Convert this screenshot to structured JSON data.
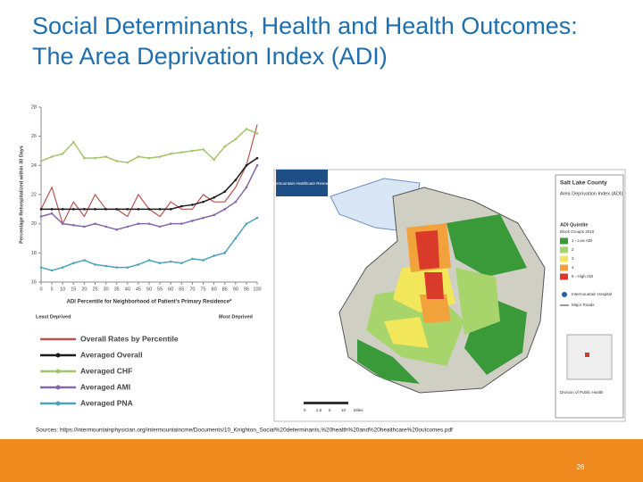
{
  "title": "Social Determinants, Health and Health Outcomes: The Area Deprivation Index (ADI)",
  "chart": {
    "type": "line",
    "y_axis_label": "Percentage Rehospitalized within 30 Days",
    "x_axis_label": "ADI Percentile for Neighborhood of Patient's Primary Residence*",
    "left_note": "Least Deprived",
    "right_note": "Most Deprived",
    "x": [
      0,
      5,
      10,
      15,
      20,
      25,
      30,
      35,
      40,
      45,
      50,
      55,
      60,
      65,
      70,
      75,
      80,
      85,
      90,
      95,
      100
    ],
    "xlim": [
      0,
      100
    ],
    "xticks": [
      0,
      5,
      10,
      15,
      20,
      25,
      30,
      35,
      40,
      45,
      50,
      55,
      60,
      65,
      70,
      75,
      80,
      85,
      90,
      95,
      100
    ],
    "ylim": [
      16,
      28
    ],
    "yticks": [
      16,
      18,
      20,
      22,
      24,
      26,
      28
    ],
    "series": [
      {
        "name": "Overall Rates by Percentile",
        "color": "#b5534f",
        "values": [
          21,
          22.5,
          20,
          21.5,
          20.5,
          22,
          21,
          21,
          20.5,
          22,
          21,
          20.5,
          21.5,
          21,
          21,
          22,
          21.5,
          21.5,
          22.5,
          24,
          26.8
        ]
      },
      {
        "name": "Averaged Overall",
        "color": "#1a1a1a",
        "values": [
          21,
          21,
          21,
          21,
          21,
          21,
          21,
          21,
          21,
          21,
          21,
          21,
          21,
          21.2,
          21.3,
          21.5,
          21.8,
          22.2,
          23,
          24,
          24.5
        ]
      },
      {
        "name": "Averaged CHF",
        "color": "#a3c46c",
        "values": [
          24.3,
          24.6,
          24.8,
          25.6,
          24.5,
          24.5,
          24.6,
          24.3,
          24.2,
          24.6,
          24.5,
          24.6,
          24.8,
          24.9,
          25,
          25.1,
          24.4,
          25.3,
          25.8,
          26.5,
          26.2
        ]
      },
      {
        "name": "Averaged AMI",
        "color": "#8468a8",
        "values": [
          20.5,
          20.7,
          20,
          19.9,
          19.8,
          20,
          19.8,
          19.6,
          19.8,
          20,
          20,
          19.8,
          20,
          20,
          20.2,
          20.4,
          20.6,
          21,
          21.5,
          22.5,
          24
        ]
      },
      {
        "name": "Averaged PNA",
        "color": "#4aa3b8",
        "values": [
          17,
          16.8,
          17,
          17.3,
          17.5,
          17.2,
          17.1,
          17,
          17,
          17.2,
          17.5,
          17.3,
          17.4,
          17.3,
          17.6,
          17.5,
          17.8,
          18,
          19,
          20,
          20.4
        ]
      }
    ]
  },
  "map": {
    "logo_text": "Intermountain Healthcare Research",
    "county": "Salt Lake County",
    "map_title": "Area Deprivation Index (ADI)",
    "legend_title": "ADI Quintile",
    "legend_subtitle": "Block Groups 2010",
    "quintiles": [
      {
        "label": "1 - Low ADI",
        "color": "#3a9a3a"
      },
      {
        "label": "2",
        "color": "#a8d46c"
      },
      {
        "label": "3",
        "color": "#f2e65a"
      },
      {
        "label": "4",
        "color": "#f2a23a"
      },
      {
        "label": "5 - High ADI",
        "color": "#d93a2a"
      }
    ],
    "hospital": "Intermountain Hospital",
    "roads": "Major Roads",
    "inset_label": "Division of Public Health",
    "scale": [
      "0",
      "2.5",
      "5",
      "10",
      "Miles"
    ]
  },
  "sources": "Sources: https://intermountainphysician.org/intermountaincme/Documents/10_Knighton_Social%20determinants,%20health%20and%20healthcare%20outcomes.pdf",
  "page_number": "26"
}
